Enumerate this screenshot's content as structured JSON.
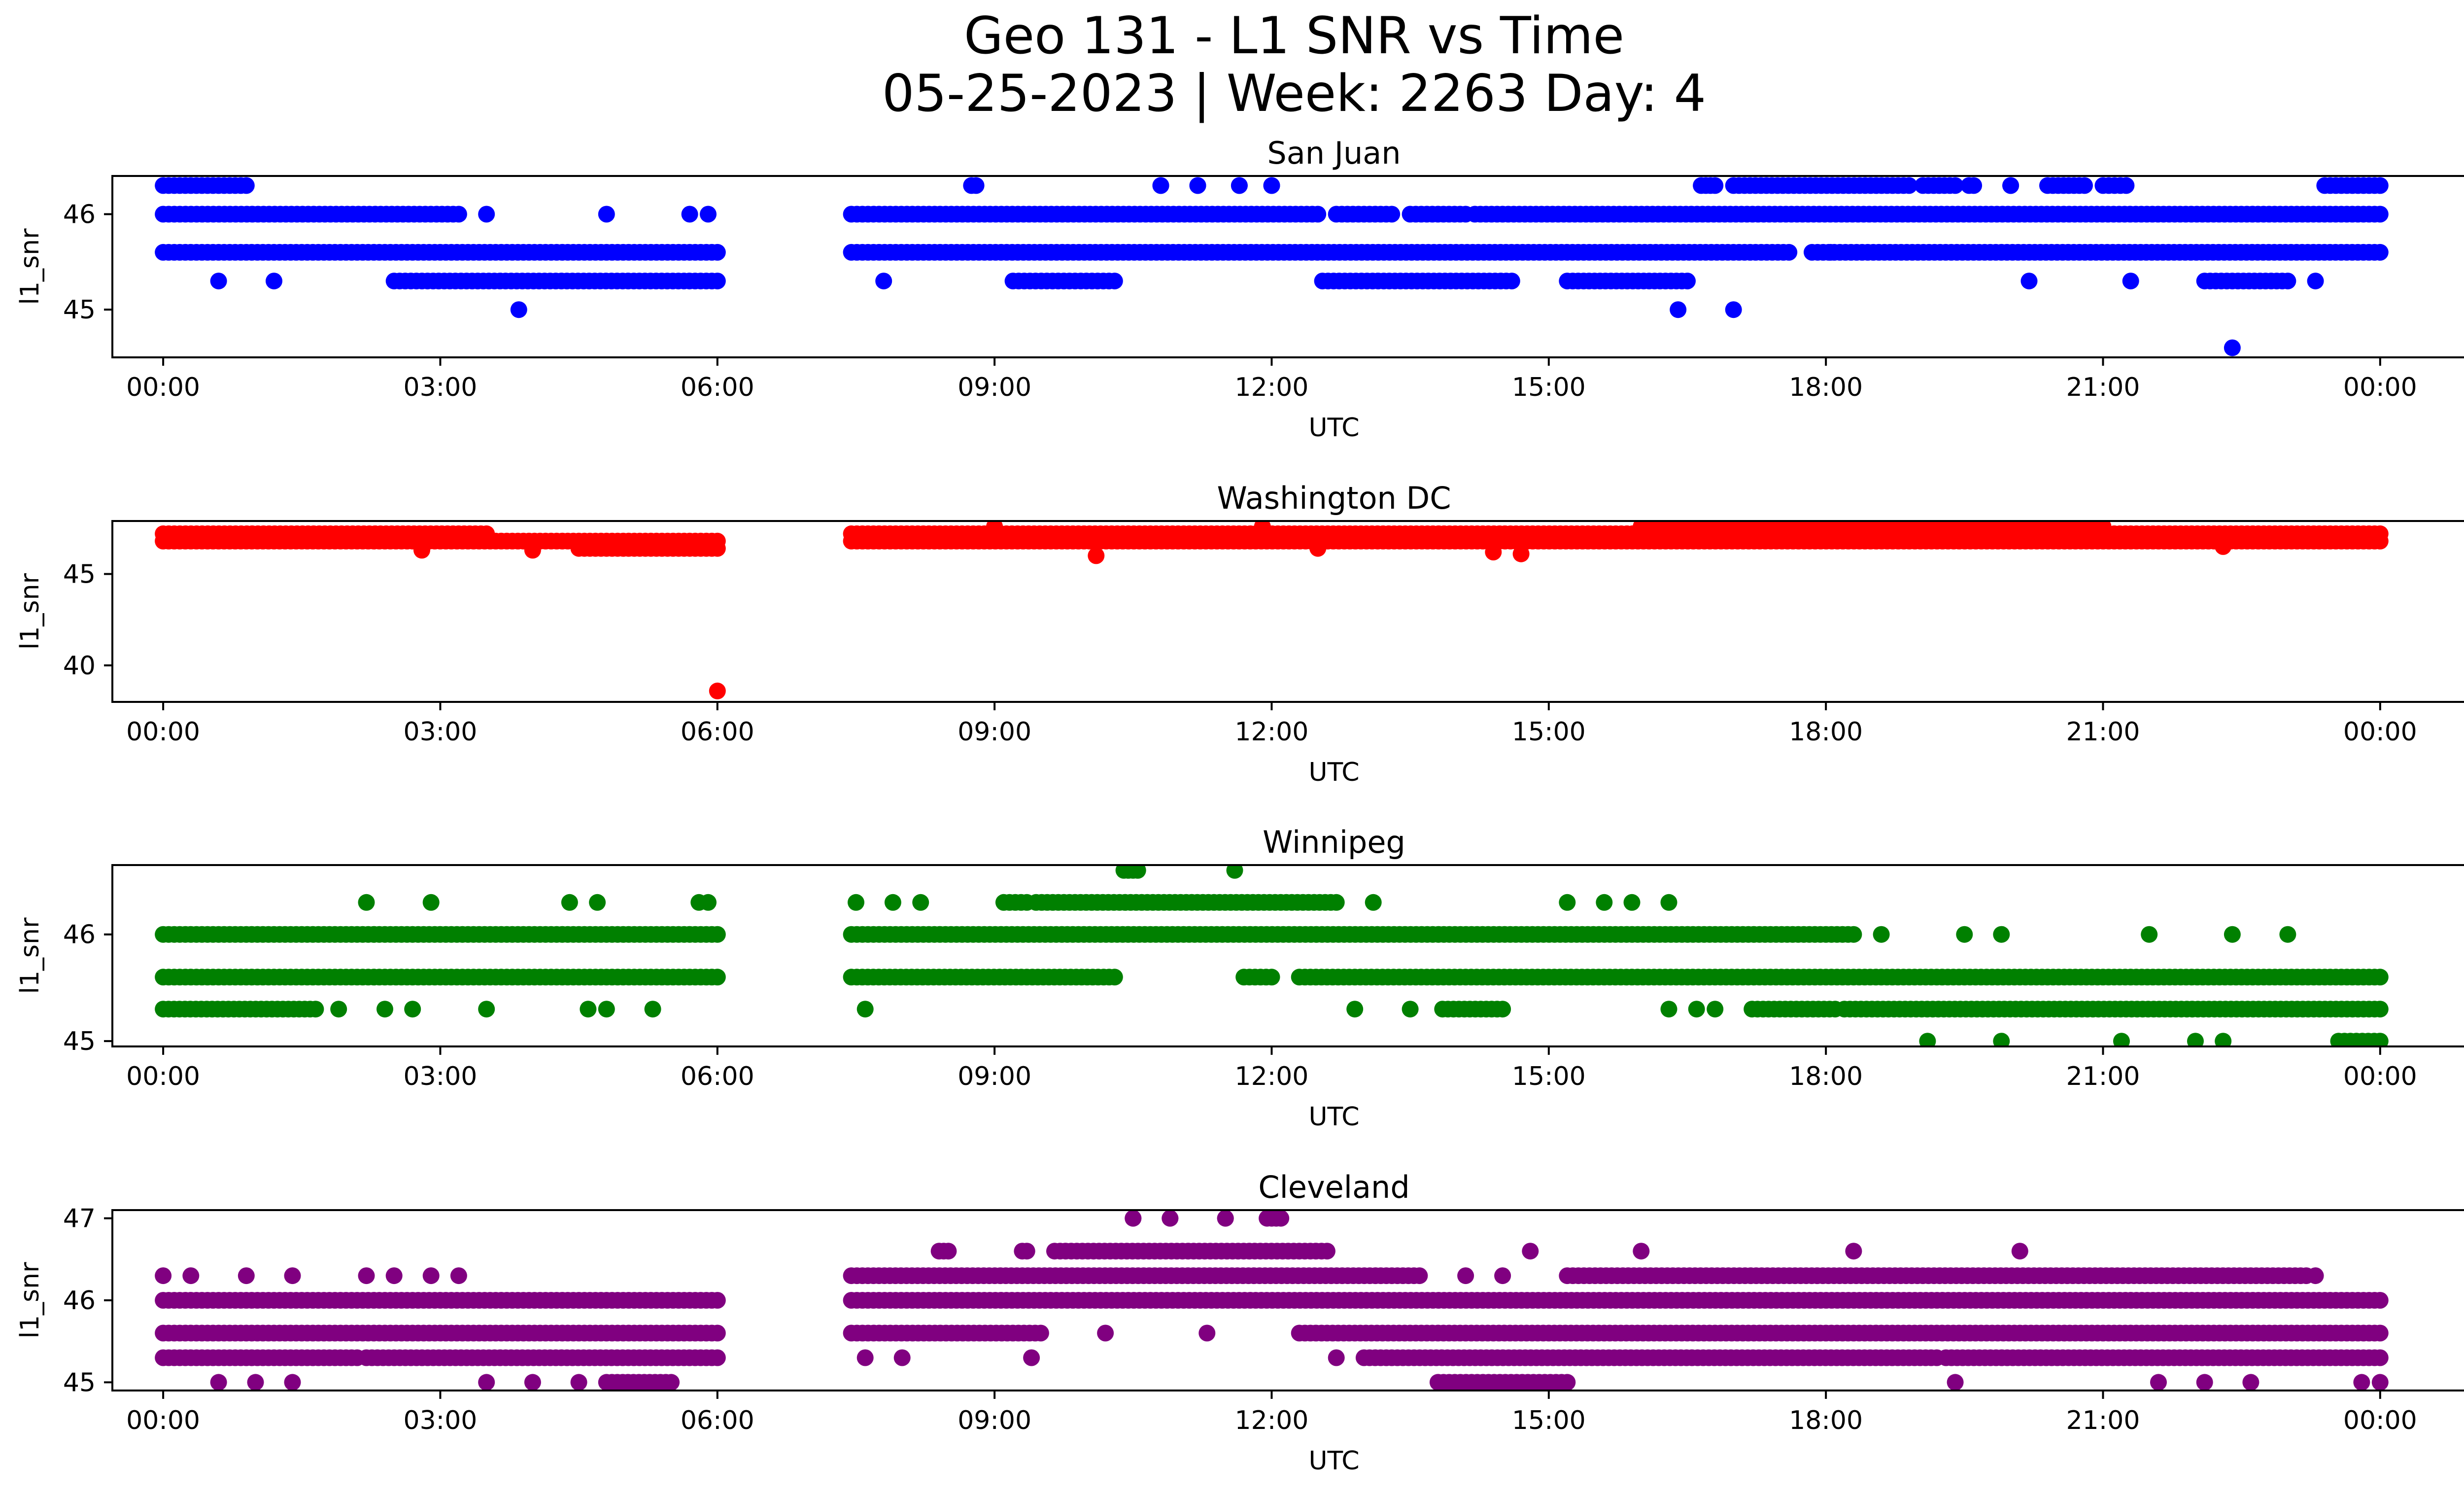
{
  "figure": {
    "title_line1": "Geo 131 - L1 SNR vs Time",
    "title_line2": "05-25-2023 | Week: 2263 Day: 4"
  },
  "chart_data": [
    {
      "type": "scatter",
      "title": "San Juan",
      "xlabel": "UTC",
      "ylabel": "l1_snr",
      "color": "#0000ff",
      "xlim": [
        -0.55,
        25.9
      ],
      "ylim": [
        44.5,
        46.4
      ],
      "yticks": [
        45,
        46
      ],
      "gaps": [
        [
          6.05,
          7.45
        ]
      ],
      "bands": [
        {
          "y": 46.3,
          "segments": [
            [
              0.0,
              0.9
            ],
            [
              8.75,
              8.8
            ],
            [
              10.8,
              10.8
            ],
            [
              11.2,
              11.2
            ],
            [
              11.65,
              11.65
            ],
            [
              12.0,
              12.0
            ],
            [
              16.65,
              16.8
            ],
            [
              17.0,
              18.9
            ],
            [
              19.05,
              19.4
            ],
            [
              19.55,
              19.6
            ],
            [
              20.0,
              20.0
            ],
            [
              20.4,
              20.8
            ],
            [
              21.0,
              21.25
            ],
            [
              23.4,
              24.0
            ]
          ]
        },
        {
          "y": 46.0,
          "segments": [
            [
              0.0,
              3.2
            ],
            [
              7.45,
              12.5
            ],
            [
              12.7,
              13.3
            ],
            [
              13.5,
              14.1
            ],
            [
              14.2,
              24.0
            ]
          ]
        },
        {
          "y": 45.6,
          "segments": [
            [
              0.0,
              6.0
            ],
            [
              7.45,
              17.6
            ],
            [
              17.85,
              24.0
            ]
          ]
        },
        {
          "y": 45.3,
          "segments": [
            [
              2.5,
              6.0
            ],
            [
              9.2,
              10.3
            ],
            [
              12.55,
              14.6
            ],
            [
              15.2,
              16.5
            ],
            [
              22.1,
              23.0
            ]
          ]
        }
      ],
      "points": [
        {
          "x": 0.6,
          "y": 45.3
        },
        {
          "x": 1.2,
          "y": 45.3
        },
        {
          "x": 3.5,
          "y": 46.0
        },
        {
          "x": 3.85,
          "y": 45.0
        },
        {
          "x": 4.8,
          "y": 46.0
        },
        {
          "x": 5.7,
          "y": 46.0
        },
        {
          "x": 5.9,
          "y": 46.0
        },
        {
          "x": 7.8,
          "y": 45.3
        },
        {
          "x": 16.4,
          "y": 45.0
        },
        {
          "x": 17.0,
          "y": 45.0
        },
        {
          "x": 18.05,
          "y": 45.6
        },
        {
          "x": 20.2,
          "y": 45.3
        },
        {
          "x": 21.3,
          "y": 45.3
        },
        {
          "x": 22.4,
          "y": 44.6
        },
        {
          "x": 23.3,
          "y": 45.3
        }
      ]
    },
    {
      "type": "scatter",
      "title": "Washington DC",
      "xlabel": "UTC",
      "ylabel": "l1_snr",
      "color": "#ff0000",
      "xlim": [
        -0.55,
        25.9
      ],
      "ylim": [
        38.0,
        47.9
      ],
      "yticks": [
        40,
        45
      ],
      "gaps": [
        [
          6.05,
          7.45
        ]
      ],
      "bands": [
        {
          "y": 47.2,
          "segments": [
            [
              0.0,
              3.5
            ],
            [
              7.45,
              24.0
            ]
          ]
        },
        {
          "y": 46.8,
          "segments": [
            [
              0.0,
              6.0
            ],
            [
              7.45,
              24.0
            ]
          ]
        },
        {
          "y": 46.4,
          "segments": [
            [
              4.5,
              6.0
            ]
          ]
        },
        {
          "y": 47.6,
          "segments": [
            [
              16.0,
              21.0
            ]
          ]
        }
      ],
      "points": [
        {
          "x": 2.8,
          "y": 46.3
        },
        {
          "x": 4.0,
          "y": 46.3
        },
        {
          "x": 6.0,
          "y": 38.6
        },
        {
          "x": 10.1,
          "y": 46.0
        },
        {
          "x": 14.4,
          "y": 46.2
        },
        {
          "x": 14.7,
          "y": 46.1
        },
        {
          "x": 12.5,
          "y": 46.4
        },
        {
          "x": 9.0,
          "y": 47.6
        },
        {
          "x": 11.9,
          "y": 47.6
        },
        {
          "x": 22.3,
          "y": 46.5
        }
      ]
    },
    {
      "type": "scatter",
      "title": "Winnipeg",
      "xlabel": "UTC",
      "ylabel": "l1_snr",
      "color": "#008000",
      "xlim": [
        -0.55,
        25.9
      ],
      "ylim": [
        44.95,
        46.65
      ],
      "yticks": [
        45,
        46
      ],
      "gaps": [
        [
          6.05,
          7.45
        ]
      ],
      "bands": [
        {
          "y": 46.6,
          "segments": [
            [
              10.4,
              10.55
            ]
          ]
        },
        {
          "y": 46.3,
          "segments": [
            [
              9.1,
              9.35
            ],
            [
              9.45,
              12.7
            ]
          ]
        },
        {
          "y": 46.0,
          "segments": [
            [
              0.0,
              6.0
            ],
            [
              7.45,
              18.3
            ]
          ]
        },
        {
          "y": 45.6,
          "segments": [
            [
              0.0,
              6.0
            ],
            [
              7.45,
              10.3
            ],
            [
              11.7,
              12.0
            ],
            [
              12.3,
              24.0
            ]
          ]
        },
        {
          "y": 45.3,
          "segments": [
            [
              0.0,
              1.65
            ],
            [
              13.85,
              14.5
            ],
            [
              17.2,
              18.1
            ],
            [
              18.2,
              24.0
            ]
          ]
        },
        {
          "y": 45.0,
          "segments": [
            [
              23.55,
              24.0
            ]
          ]
        }
      ],
      "points": [
        {
          "x": 2.2,
          "y": 46.3
        },
        {
          "x": 2.9,
          "y": 46.3
        },
        {
          "x": 4.4,
          "y": 46.3
        },
        {
          "x": 4.7,
          "y": 46.3
        },
        {
          "x": 5.8,
          "y": 46.3
        },
        {
          "x": 5.9,
          "y": 46.3
        },
        {
          "x": 7.5,
          "y": 46.3
        },
        {
          "x": 7.9,
          "y": 46.3
        },
        {
          "x": 8.2,
          "y": 46.3
        },
        {
          "x": 11.6,
          "y": 46.6
        },
        {
          "x": 13.1,
          "y": 46.3
        },
        {
          "x": 15.2,
          "y": 46.3
        },
        {
          "x": 15.6,
          "y": 46.3
        },
        {
          "x": 15.9,
          "y": 46.3
        },
        {
          "x": 16.3,
          "y": 46.3
        },
        {
          "x": 18.6,
          "y": 46.0
        },
        {
          "x": 19.5,
          "y": 46.0
        },
        {
          "x": 19.9,
          "y": 46.0
        },
        {
          "x": 21.5,
          "y": 46.0
        },
        {
          "x": 22.4,
          "y": 46.0
        },
        {
          "x": 23.0,
          "y": 46.0
        },
        {
          "x": 1.9,
          "y": 45.3
        },
        {
          "x": 2.4,
          "y": 45.3
        },
        {
          "x": 2.7,
          "y": 45.3
        },
        {
          "x": 3.5,
          "y": 45.3
        },
        {
          "x": 4.6,
          "y": 45.3
        },
        {
          "x": 4.8,
          "y": 45.3
        },
        {
          "x": 5.3,
          "y": 45.3
        },
        {
          "x": 7.6,
          "y": 45.3
        },
        {
          "x": 12.9,
          "y": 45.3
        },
        {
          "x": 13.5,
          "y": 45.3
        },
        {
          "x": 16.3,
          "y": 45.3
        },
        {
          "x": 16.6,
          "y": 45.3
        },
        {
          "x": 16.8,
          "y": 45.3
        },
        {
          "x": 19.1,
          "y": 45.0
        },
        {
          "x": 19.9,
          "y": 45.0
        },
        {
          "x": 21.2,
          "y": 45.0
        },
        {
          "x": 22.0,
          "y": 45.0
        },
        {
          "x": 22.3,
          "y": 45.0
        }
      ]
    },
    {
      "type": "scatter",
      "title": "Cleveland",
      "xlabel": "UTC",
      "ylabel": "l1_snr",
      "color": "#800080",
      "xlim": [
        -0.55,
        25.9
      ],
      "ylim": [
        44.9,
        47.1
      ],
      "yticks": [
        45,
        46,
        47
      ],
      "gaps": [
        [
          6.05,
          7.45
        ]
      ],
      "bands": [
        {
          "y": 47.0,
          "segments": [
            [
              10.5,
              10.5
            ],
            [
              10.9,
              10.9
            ],
            [
              11.5,
              11.5
            ],
            [
              11.95,
              12.1
            ]
          ]
        },
        {
          "y": 46.6,
          "segments": [
            [
              8.4,
              8.5
            ],
            [
              9.3,
              9.35
            ],
            [
              9.65,
              12.6
            ]
          ]
        },
        {
          "y": 46.3,
          "segments": [
            [
              7.45,
              13.6
            ],
            [
              15.2,
              23.2
            ]
          ]
        },
        {
          "y": 46.0,
          "segments": [
            [
              0.0,
              6.0
            ],
            [
              7.45,
              24.0
            ]
          ]
        },
        {
          "y": 45.6,
          "segments": [
            [
              0.0,
              6.0
            ],
            [
              7.45,
              9.5
            ],
            [
              12.3,
              24.0
            ]
          ]
        },
        {
          "y": 45.3,
          "segments": [
            [
              0.0,
              2.1
            ],
            [
              2.2,
              6.0
            ],
            [
              13.0,
              19.2
            ],
            [
              19.3,
              24.0
            ]
          ]
        },
        {
          "y": 45.0,
          "segments": [
            [
              13.8,
              15.2
            ],
            [
              4.8,
              5.5
            ]
          ]
        }
      ],
      "points": [
        {
          "x": 0.0,
          "y": 46.3
        },
        {
          "x": 0.3,
          "y": 46.3
        },
        {
          "x": 0.9,
          "y": 46.3
        },
        {
          "x": 1.4,
          "y": 46.3
        },
        {
          "x": 2.2,
          "y": 46.3
        },
        {
          "x": 2.5,
          "y": 46.3
        },
        {
          "x": 2.9,
          "y": 46.3
        },
        {
          "x": 3.2,
          "y": 46.3
        },
        {
          "x": 0.6,
          "y": 45.0
        },
        {
          "x": 1.0,
          "y": 45.0
        },
        {
          "x": 1.4,
          "y": 45.0
        },
        {
          "x": 3.5,
          "y": 45.0
        },
        {
          "x": 4.0,
          "y": 45.0
        },
        {
          "x": 4.5,
          "y": 45.0
        },
        {
          "x": 7.6,
          "y": 45.3
        },
        {
          "x": 8.0,
          "y": 45.3
        },
        {
          "x": 9.4,
          "y": 45.3
        },
        {
          "x": 10.2,
          "y": 45.6
        },
        {
          "x": 11.3,
          "y": 45.6
        },
        {
          "x": 12.7,
          "y": 45.3
        },
        {
          "x": 14.1,
          "y": 46.3
        },
        {
          "x": 14.5,
          "y": 46.3
        },
        {
          "x": 14.8,
          "y": 46.6
        },
        {
          "x": 16.0,
          "y": 46.6
        },
        {
          "x": 18.3,
          "y": 46.6
        },
        {
          "x": 20.1,
          "y": 46.6
        },
        {
          "x": 19.4,
          "y": 45.0
        },
        {
          "x": 21.6,
          "y": 45.0
        },
        {
          "x": 22.1,
          "y": 45.0
        },
        {
          "x": 22.6,
          "y": 45.0
        },
        {
          "x": 23.8,
          "y": 45.0
        },
        {
          "x": 24.0,
          "y": 45.0
        },
        {
          "x": 23.3,
          "y": 46.3
        }
      ]
    }
  ],
  "xaxis": {
    "ticks": [
      0,
      3,
      6,
      9,
      12,
      15,
      18,
      21,
      24
    ],
    "tick_labels": [
      "00:00",
      "03:00",
      "06:00",
      "09:00",
      "12:00",
      "15:00",
      "18:00",
      "21:00",
      "00:00"
    ]
  }
}
